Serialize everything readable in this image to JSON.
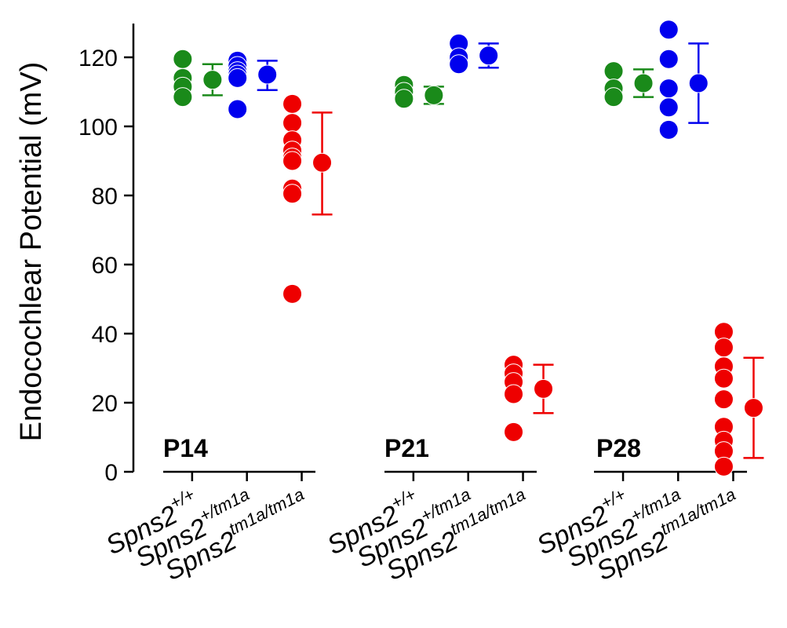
{
  "chart_data": {
    "type": "scatter",
    "ylabel": "Endocochlear Potential (mV)",
    "ylim": [
      0,
      130
    ],
    "yticks": [
      0,
      20,
      40,
      60,
      80,
      100,
      120
    ],
    "colors": {
      "Spns2+/+": "#1a8a1a",
      "Spns2+/tm1a": "#0000ee",
      "Spns2tm1a/tm1a": "#ee0000"
    },
    "panels": [
      {
        "label": "P14",
        "groups": [
          {
            "category_base": "Spns2",
            "category_sup": "+/+",
            "color": "#1a8a1a",
            "points": [
              119.5,
              114,
              111.5,
              108.5
            ],
            "mean": 113.5,
            "sd_low": 109,
            "sd_high": 118
          },
          {
            "category_base": "Spns2",
            "category_sup": "+/tm1a",
            "color": "#0000ee",
            "points": [
              119,
              117.5,
              116,
              115,
              114,
              105
            ],
            "mean": 115,
            "sd_low": 110.5,
            "sd_high": 119
          },
          {
            "category_base": "Spns2",
            "category_sup": "tm1a/tm1a",
            "color": "#ee0000",
            "points": [
              106.5,
              101,
              96,
              93,
              91,
              90,
              82,
              80.5,
              51.5
            ],
            "mean": 89.5,
            "sd_low": 74.5,
            "sd_high": 104
          }
        ]
      },
      {
        "label": "P21",
        "groups": [
          {
            "category_base": "Spns2",
            "category_sup": "+/+",
            "color": "#1a8a1a",
            "points": [
              112,
              110,
              108
            ],
            "mean": 109,
            "sd_low": 106.5,
            "sd_high": 111.5
          },
          {
            "category_base": "Spns2",
            "category_sup": "+/tm1a",
            "color": "#0000ee",
            "points": [
              124,
              120,
              118
            ],
            "mean": 120.5,
            "sd_low": 117,
            "sd_high": 124
          },
          {
            "category_base": "Spns2",
            "category_sup": "tm1a/tm1a",
            "color": "#ee0000",
            "points": [
              31,
              28.5,
              26,
              22.5,
              11.5
            ],
            "mean": 24,
            "sd_low": 17,
            "sd_high": 31
          }
        ]
      },
      {
        "label": "P28",
        "groups": [
          {
            "category_base": "Spns2",
            "category_sup": "+/+",
            "color": "#1a8a1a",
            "points": [
              116,
              111,
              108.5
            ],
            "mean": 112.5,
            "sd_low": 108.5,
            "sd_high": 116.5
          },
          {
            "category_base": "Spns2",
            "category_sup": "+/tm1a",
            "color": "#0000ee",
            "points": [
              128,
              119.5,
              111,
              105.5,
              99
            ],
            "mean": 112.5,
            "sd_low": 101,
            "sd_high": 124
          },
          {
            "category_base": "Spns2",
            "category_sup": "tm1a/tm1a",
            "color": "#ee0000",
            "points": [
              40.5,
              36,
              30.5,
              27,
              21,
              13,
              9,
              6,
              1.5
            ],
            "mean": 18.5,
            "sd_low": 4,
            "sd_high": 33
          }
        ]
      }
    ]
  }
}
